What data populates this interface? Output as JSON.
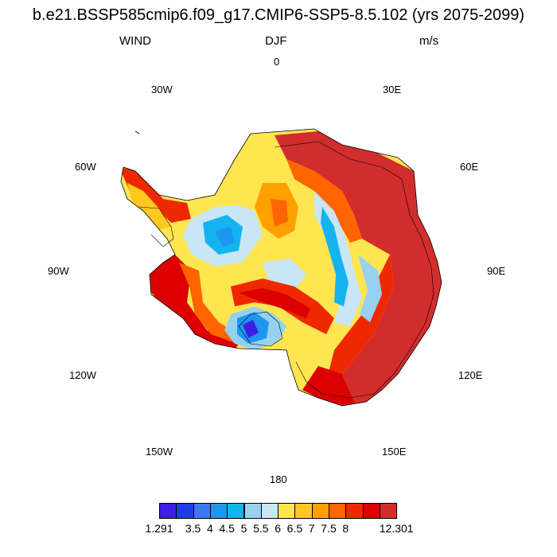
{
  "title": "b.e21.BSSP585cmip6.f09_g17.CMIP6-SSP5-8.5.102 (yrs 2075-2099)",
  "subtitle": {
    "variable": "WIND",
    "season": "DJF",
    "units": "m/s"
  },
  "longitude_labels": {
    "0": "0",
    "30E": "30E",
    "60E": "60E",
    "90E": "90E",
    "120E": "120E",
    "150E": "150E",
    "180": "180",
    "150W": "150W",
    "120W": "120W",
    "90W": "90W",
    "60W": "60W",
    "30W": "30W"
  },
  "colorbar": {
    "colors": [
      "#3c1ee6",
      "#1e3ce6",
      "#3c78f0",
      "#1e96f0",
      "#14b4f0",
      "#96d2f0",
      "#c8e6f5",
      "#ffe650",
      "#ffc81e",
      "#ffa000",
      "#ff6400",
      "#f02800",
      "#dc0000",
      "#d22d2d"
    ],
    "labels": [
      "1.291",
      "3.5",
      "4",
      "4.5",
      "5",
      "5.5",
      "6",
      "6.5",
      "7",
      "7.5",
      "8",
      "12.301"
    ]
  },
  "map": {
    "projection": "south polar stereographic",
    "region": "Antarctica"
  }
}
